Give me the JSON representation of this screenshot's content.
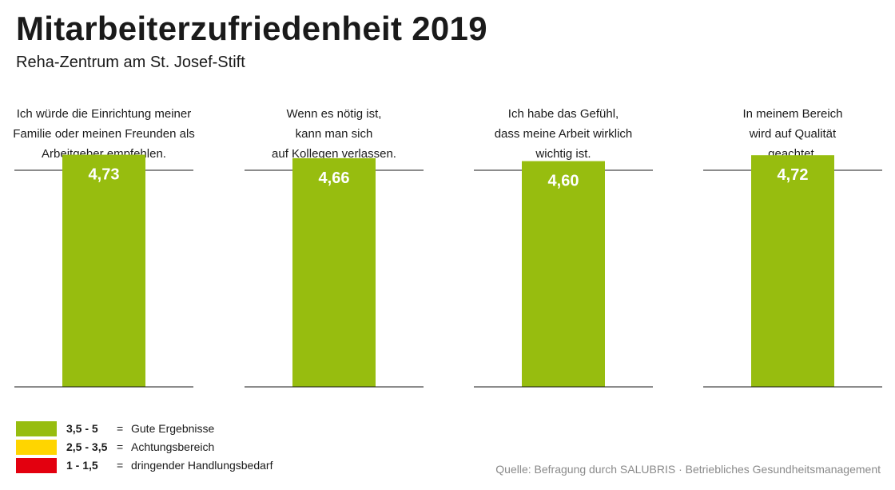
{
  "header": {
    "title": "Mitarbeiterzufriedenheit 2019",
    "subtitle": "Reha-Zentrum am St. Josef-Stift"
  },
  "chart_data": {
    "type": "bar",
    "ylim": [
      0,
      5
    ],
    "bar_color": "#97bd0f",
    "label_color": "#ffffff",
    "categories": [
      [
        "Ich würde die Einrichtung meiner",
        "Familie oder meinen Freunden als",
        "Arbeitgeber empfehlen."
      ],
      [
        "Wenn es nötig ist,",
        "kann man sich",
        "auf Kollegen verlassen."
      ],
      [
        "Ich habe das Gefühl,",
        "dass meine  Arbeit wirklich",
        "wichtig ist."
      ],
      [
        "In meinem Bereich",
        "wird auf Qualität",
        "geachtet."
      ]
    ],
    "values": [
      4.73,
      4.66,
      4.6,
      4.72
    ],
    "value_labels": [
      "4,73",
      "4,66",
      "4,60",
      "4,72"
    ]
  },
  "legend": {
    "items": [
      {
        "color": "#97bd0f",
        "range": "3,5 - 5",
        "eq": "=",
        "label": "Gute Ergebnisse"
      },
      {
        "color": "#ffd500",
        "range": "2,5 - 3,5",
        "eq": "=",
        "label": "Achtungsbereich"
      },
      {
        "color": "#e3000f",
        "range": "1 - 1,5",
        "eq": "=",
        "label": "dringender Handlungsbedarf"
      }
    ]
  },
  "footer": {
    "source": "Quelle: Befragung durch SALUBRIS · Betriebliches Gesundheitsmanagement"
  }
}
